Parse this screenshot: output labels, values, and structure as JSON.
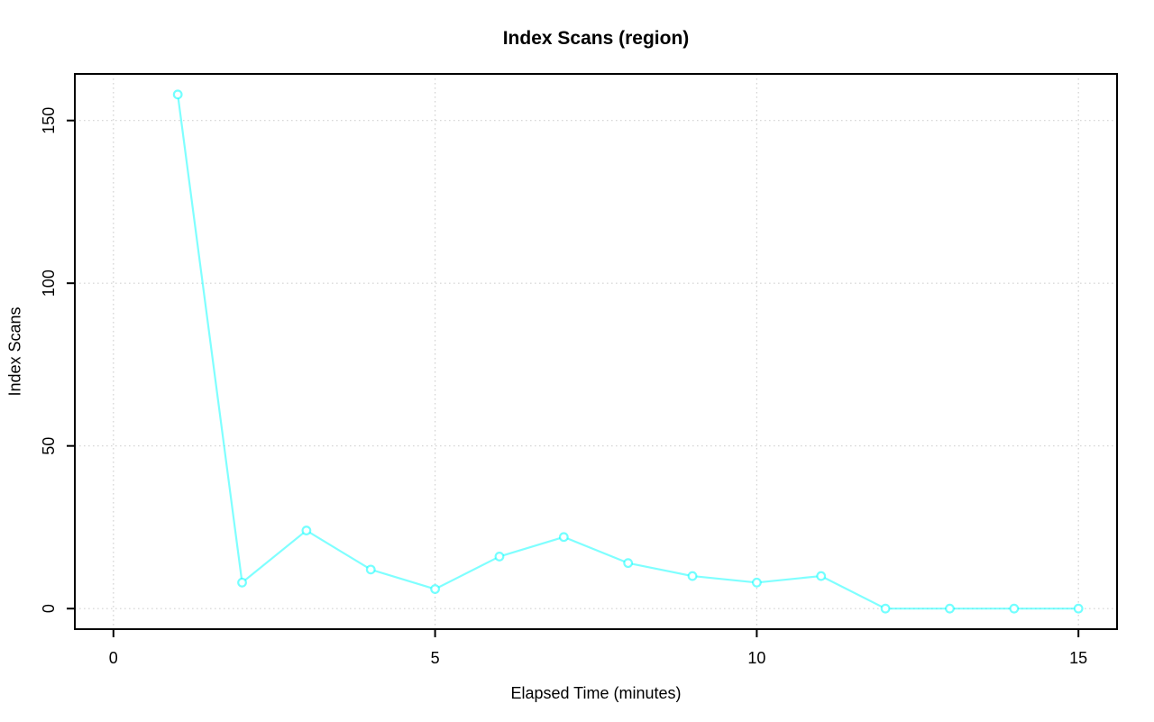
{
  "chart_data": {
    "type": "line",
    "title": "Index Scans (region)",
    "xlabel": "Elapsed Time (minutes)",
    "ylabel": "Index Scans",
    "x": [
      1,
      2,
      3,
      4,
      5,
      6,
      7,
      8,
      9,
      10,
      11,
      12,
      13,
      14,
      15
    ],
    "values": [
      158,
      8,
      24,
      12,
      6,
      16,
      22,
      14,
      10,
      8,
      10,
      0,
      0,
      0,
      0
    ],
    "xticks": [
      0,
      5,
      10,
      15
    ],
    "yticks": [
      0,
      50,
      100,
      150
    ],
    "xlim": [
      -0.6,
      15.6
    ],
    "ylim": [
      -6.32,
      164.32
    ],
    "grid": true,
    "grid_style": "dotted",
    "legend": "none",
    "marker": "open-circle",
    "line_color": "rgba(0,255,255,0.5)",
    "marker_stroke_color": "rgba(0,255,255,0.55)",
    "grid_color": "#D3D3D3",
    "axis_color": "#000000"
  }
}
